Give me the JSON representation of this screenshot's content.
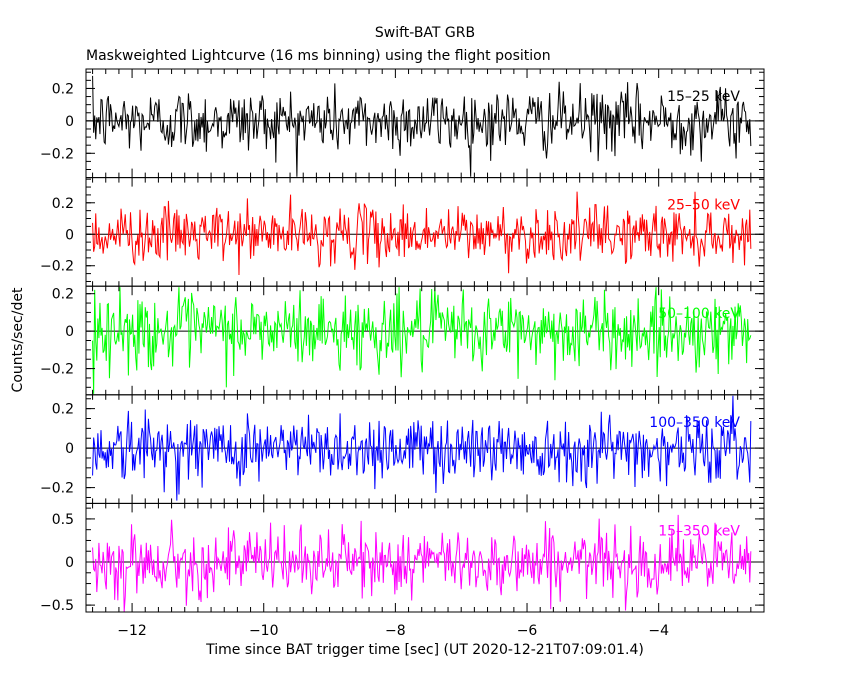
{
  "title": "Swift-BAT GRB",
  "subtitle": "Maskweighted Lightcurve (16 ms binning) using the flight position",
  "chart_data": {
    "type": "line",
    "title": "Swift-BAT GRB",
    "subtitle": "Maskweighted Lightcurve (16 ms binning) using the flight position",
    "xlabel": "Time since BAT trigger time [sec] (UT 2020-12-21T07:09:01.4)",
    "ylabel": "Counts/sec/det",
    "xlim": [
      -12.7,
      -2.4
    ],
    "x_range": [
      -12.6,
      -2.6
    ],
    "bin_width": 0.016,
    "xticks": [
      -12,
      -10,
      -8,
      -6,
      -4
    ],
    "xtick_labels": [
      "−12",
      "−10",
      "−8",
      "−6",
      "−4"
    ],
    "legend": "none",
    "grid": false,
    "panels": [
      {
        "name": "15–25 keV",
        "color": "#000000",
        "ylim": [
          -0.35,
          0.32
        ],
        "yticks": [
          -0.2,
          0,
          0.2
        ],
        "ytick_labels": [
          "−0.2",
          "0",
          "0.2"
        ],
        "noise_sigma": 0.1
      },
      {
        "name": "25–50 keV",
        "color": "#ff0000",
        "ylim": [
          -0.33,
          0.36
        ],
        "yticks": [
          -0.2,
          0,
          0.2
        ],
        "ytick_labels": [
          "−0.2",
          "0",
          "0.2"
        ],
        "noise_sigma": 0.09
      },
      {
        "name": "50–100 keV",
        "color": "#00ff00",
        "ylim": [
          -0.34,
          0.24
        ],
        "yticks": [
          -0.2,
          0,
          0.2
        ],
        "ytick_labels": [
          "−0.2",
          "0",
          "0.2"
        ],
        "noise_sigma": 0.1
      },
      {
        "name": "100–350 keV",
        "color": "#0000ff",
        "ylim": [
          -0.28,
          0.27
        ],
        "yticks": [
          -0.2,
          0,
          0.2
        ],
        "ytick_labels": [
          "−0.2",
          "0",
          "0.2"
        ],
        "noise_sigma": 0.085
      },
      {
        "name": "15–350 keV",
        "color": "#ff00ff",
        "ylim": [
          -0.58,
          0.68
        ],
        "yticks": [
          -0.5,
          0,
          0.5
        ],
        "ytick_labels": [
          "−0.5",
          "0",
          "0.5"
        ],
        "noise_sigma": 0.19
      }
    ]
  }
}
